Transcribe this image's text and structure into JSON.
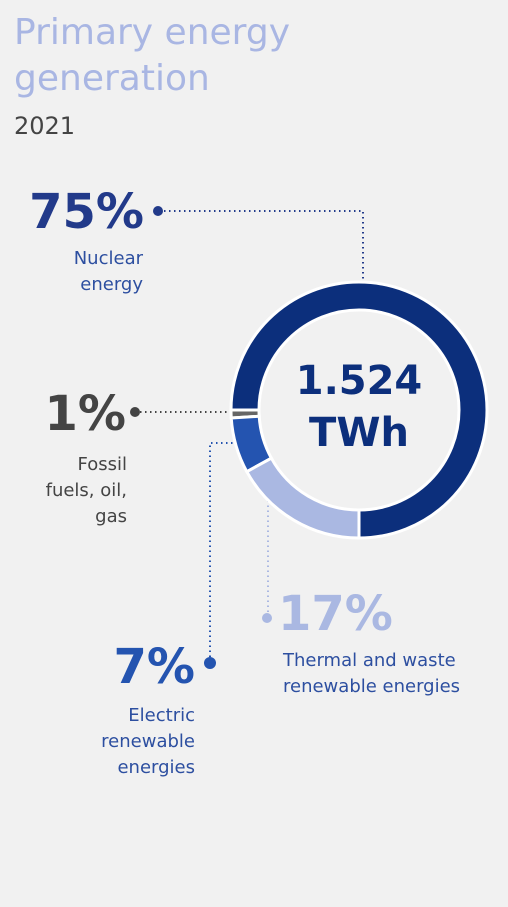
{
  "chart_data": {
    "type": "donut",
    "title": "Primary energy generation",
    "subtitle": "2021",
    "center_label": "1.524 TWh",
    "categories": [
      "Nuclear energy",
      "Fossil fuels, oil, gas",
      "Electric renewable energies",
      "Thermal and waste renewable energies"
    ],
    "values": [
      75,
      1,
      7,
      17
    ],
    "value_labels": [
      "75%",
      "1%",
      "7%",
      "17%"
    ],
    "colors": [
      "#0c2f7c",
      "#666666",
      "#2454b0",
      "#aab8e2"
    ]
  }
}
